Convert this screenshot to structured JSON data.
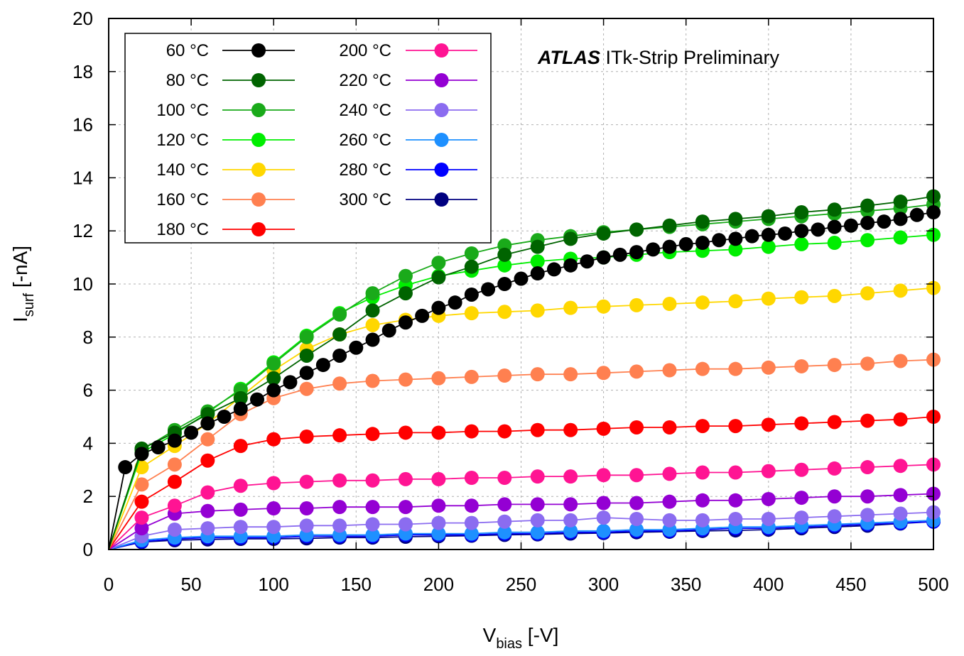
{
  "chart_data": {
    "type": "line",
    "xlabel_main": "V",
    "xlabel_sub": "bias",
    "xlabel_rest": " [-V]",
    "ylabel_main": "I",
    "ylabel_sub": "surf",
    "ylabel_rest": " [-nA]",
    "xlim": [
      0,
      500
    ],
    "ylim": [
      0,
      20
    ],
    "xticks": [
      0,
      50,
      100,
      150,
      200,
      250,
      300,
      350,
      400,
      450,
      500
    ],
    "yticks": [
      0,
      2,
      4,
      6,
      8,
      10,
      12,
      14,
      16,
      18,
      20
    ],
    "grid": true,
    "legend_position": "top-left",
    "annotation": {
      "bold": "ATLAS",
      "rest": " ITk-Strip Preliminary"
    },
    "series": [
      {
        "name": "60 °C",
        "color": "#000000",
        "x": [
          0,
          10,
          20,
          30,
          40,
          50,
          60,
          70,
          80,
          90,
          100,
          110,
          120,
          130,
          140,
          150,
          160,
          170,
          180,
          190,
          200,
          210,
          220,
          230,
          240,
          250,
          260,
          270,
          280,
          290,
          300,
          310,
          320,
          330,
          340,
          350,
          360,
          370,
          380,
          390,
          400,
          410,
          420,
          430,
          440,
          450,
          460,
          470,
          480,
          490,
          500
        ],
        "y": [
          0,
          3.1,
          3.6,
          3.85,
          4.1,
          4.4,
          4.75,
          5.0,
          5.3,
          5.65,
          6.0,
          6.3,
          6.65,
          6.95,
          7.3,
          7.6,
          7.9,
          8.25,
          8.55,
          8.8,
          9.1,
          9.3,
          9.6,
          9.8,
          10.0,
          10.2,
          10.4,
          10.55,
          10.7,
          10.85,
          11.0,
          11.1,
          11.2,
          11.3,
          11.4,
          11.5,
          11.55,
          11.65,
          11.7,
          11.8,
          11.85,
          11.9,
          12.0,
          12.05,
          12.15,
          12.2,
          12.3,
          12.35,
          12.45,
          12.6,
          12.7
        ]
      },
      {
        "name": "80 °C",
        "color": "#006400",
        "x": [
          0,
          20,
          40,
          60,
          80,
          100,
          120,
          140,
          160,
          180,
          200,
          220,
          240,
          260,
          280,
          300,
          320,
          340,
          360,
          380,
          400,
          420,
          440,
          460,
          480,
          500
        ],
        "y": [
          0,
          3.8,
          4.4,
          5.1,
          5.7,
          6.45,
          7.3,
          8.1,
          9.0,
          9.65,
          10.25,
          10.65,
          11.1,
          11.4,
          11.7,
          11.9,
          12.05,
          12.2,
          12.35,
          12.45,
          12.55,
          12.7,
          12.8,
          12.95,
          13.1,
          13.3
        ]
      },
      {
        "name": "100 °C",
        "color": "#1aaa1a",
        "x": [
          0,
          20,
          40,
          60,
          80,
          100,
          120,
          140,
          160,
          180,
          200,
          220,
          240,
          260,
          280,
          300,
          320,
          340,
          360,
          380,
          400,
          420,
          440,
          460,
          480,
          500
        ],
        "y": [
          0,
          3.75,
          4.5,
          5.2,
          6.0,
          7.0,
          8.0,
          8.85,
          9.65,
          10.3,
          10.8,
          11.15,
          11.45,
          11.65,
          11.8,
          11.95,
          12.05,
          12.15,
          12.25,
          12.35,
          12.45,
          12.55,
          12.65,
          12.75,
          12.85,
          13.0
        ]
      },
      {
        "name": "120 °C",
        "color": "#00ee00",
        "x": [
          0,
          20,
          40,
          60,
          80,
          100,
          120,
          140,
          160,
          180,
          200,
          220,
          240,
          260,
          280,
          300,
          320,
          340,
          360,
          380,
          400,
          420,
          440,
          460,
          480,
          500
        ],
        "y": [
          0,
          3.65,
          4.35,
          5.15,
          6.05,
          7.05,
          8.05,
          8.9,
          9.5,
          9.95,
          10.3,
          10.5,
          10.7,
          10.85,
          10.95,
          11.0,
          11.1,
          11.2,
          11.25,
          11.3,
          11.4,
          11.5,
          11.55,
          11.65,
          11.75,
          11.85
        ]
      },
      {
        "name": "140 °C",
        "color": "#ffd700",
        "x": [
          0,
          20,
          40,
          60,
          80,
          100,
          120,
          140,
          160,
          180,
          200,
          220,
          240,
          260,
          280,
          300,
          320,
          340,
          360,
          380,
          400,
          420,
          440,
          460,
          480,
          500
        ],
        "y": [
          0,
          3.1,
          3.9,
          4.75,
          5.75,
          6.75,
          7.55,
          8.1,
          8.45,
          8.65,
          8.8,
          8.9,
          8.95,
          9.0,
          9.1,
          9.15,
          9.2,
          9.25,
          9.3,
          9.35,
          9.45,
          9.5,
          9.55,
          9.65,
          9.75,
          9.85
        ]
      },
      {
        "name": "160 °C",
        "color": "#ff8050",
        "x": [
          0,
          20,
          40,
          60,
          80,
          100,
          120,
          140,
          160,
          180,
          200,
          220,
          240,
          260,
          280,
          300,
          320,
          340,
          360,
          380,
          400,
          420,
          440,
          460,
          480,
          500
        ],
        "y": [
          0,
          2.45,
          3.2,
          4.15,
          5.1,
          5.7,
          6.05,
          6.25,
          6.35,
          6.4,
          6.45,
          6.5,
          6.55,
          6.6,
          6.6,
          6.65,
          6.7,
          6.75,
          6.8,
          6.8,
          6.85,
          6.9,
          6.95,
          7.0,
          7.1,
          7.15
        ]
      },
      {
        "name": "180 °C",
        "color": "#ff0000",
        "x": [
          0,
          20,
          40,
          60,
          80,
          100,
          120,
          140,
          160,
          180,
          200,
          220,
          240,
          260,
          280,
          300,
          320,
          340,
          360,
          380,
          400,
          420,
          440,
          460,
          480,
          500
        ],
        "y": [
          0,
          1.8,
          2.55,
          3.35,
          3.9,
          4.15,
          4.25,
          4.3,
          4.35,
          4.4,
          4.4,
          4.45,
          4.45,
          4.5,
          4.5,
          4.55,
          4.6,
          4.6,
          4.65,
          4.65,
          4.7,
          4.75,
          4.8,
          4.85,
          4.9,
          5.0
        ]
      },
      {
        "name": "200 °C",
        "color": "#ff1493",
        "x": [
          0,
          20,
          40,
          60,
          80,
          100,
          120,
          140,
          160,
          180,
          200,
          220,
          240,
          260,
          280,
          300,
          320,
          340,
          360,
          380,
          400,
          420,
          440,
          460,
          480,
          500
        ],
        "y": [
          0,
          1.2,
          1.65,
          2.15,
          2.4,
          2.5,
          2.55,
          2.6,
          2.6,
          2.65,
          2.65,
          2.7,
          2.7,
          2.75,
          2.75,
          2.8,
          2.8,
          2.85,
          2.9,
          2.9,
          2.95,
          3.0,
          3.05,
          3.1,
          3.15,
          3.2
        ]
      },
      {
        "name": "220 °C",
        "color": "#9400d3",
        "x": [
          0,
          20,
          40,
          60,
          80,
          100,
          120,
          140,
          160,
          180,
          200,
          220,
          240,
          260,
          280,
          300,
          320,
          340,
          360,
          380,
          400,
          420,
          440,
          460,
          480,
          500
        ],
        "y": [
          0,
          0.8,
          1.35,
          1.45,
          1.5,
          1.55,
          1.55,
          1.6,
          1.6,
          1.6,
          1.65,
          1.65,
          1.7,
          1.7,
          1.7,
          1.75,
          1.75,
          1.8,
          1.85,
          1.85,
          1.9,
          1.95,
          2.0,
          2.0,
          2.05,
          2.1
        ]
      },
      {
        "name": "240 °C",
        "color": "#8b6cf0",
        "x": [
          0,
          20,
          40,
          60,
          80,
          100,
          120,
          140,
          160,
          180,
          200,
          220,
          240,
          260,
          280,
          300,
          320,
          340,
          360,
          380,
          400,
          420,
          440,
          460,
          480,
          500
        ],
        "y": [
          0,
          0.5,
          0.75,
          0.8,
          0.85,
          0.85,
          0.9,
          0.9,
          0.95,
          0.95,
          1.0,
          1.0,
          1.05,
          1.1,
          1.1,
          1.2,
          1.15,
          1.1,
          1.1,
          1.15,
          1.15,
          1.2,
          1.25,
          1.3,
          1.35,
          1.4
        ]
      },
      {
        "name": "260 °C",
        "color": "#1e90ff",
        "x": [
          0,
          20,
          40,
          60,
          80,
          100,
          120,
          140,
          160,
          180,
          200,
          220,
          240,
          260,
          280,
          300,
          320,
          340,
          360,
          380,
          400,
          420,
          440,
          460,
          480,
          500
        ],
        "y": [
          0,
          0.35,
          0.45,
          0.5,
          0.5,
          0.5,
          0.55,
          0.55,
          0.55,
          0.6,
          0.6,
          0.6,
          0.65,
          0.65,
          0.7,
          0.7,
          0.75,
          0.75,
          0.8,
          0.85,
          0.85,
          0.9,
          0.95,
          1.0,
          1.05,
          1.1
        ]
      },
      {
        "name": "280 °C",
        "color": "#0000ff",
        "x": [
          0,
          20,
          40,
          60,
          80,
          100,
          120,
          140,
          160,
          180,
          200,
          220,
          240,
          260,
          280,
          300,
          320,
          340,
          360,
          380,
          400,
          420,
          440,
          460,
          480,
          500
        ],
        "y": [
          0,
          0.3,
          0.4,
          0.45,
          0.45,
          0.45,
          0.5,
          0.5,
          0.5,
          0.55,
          0.55,
          0.55,
          0.6,
          0.6,
          0.65,
          0.65,
          0.7,
          0.7,
          0.75,
          0.8,
          0.8,
          0.85,
          0.9,
          0.95,
          1.0,
          1.05
        ]
      },
      {
        "name": "300 °C",
        "color": "#000080",
        "x": [
          0,
          20,
          40,
          60,
          80,
          100,
          120,
          140,
          160,
          180,
          200,
          220,
          240,
          260,
          280,
          300,
          320,
          340,
          360,
          380,
          400,
          420,
          440,
          460,
          480,
          500
        ],
        "y": [
          0,
          0.28,
          0.35,
          0.38,
          0.4,
          0.4,
          0.42,
          0.45,
          0.45,
          0.48,
          0.5,
          0.52,
          0.55,
          0.57,
          0.6,
          0.62,
          0.65,
          0.67,
          0.7,
          0.72,
          0.75,
          0.8,
          0.85,
          0.9,
          0.98,
          1.05
        ]
      }
    ]
  }
}
